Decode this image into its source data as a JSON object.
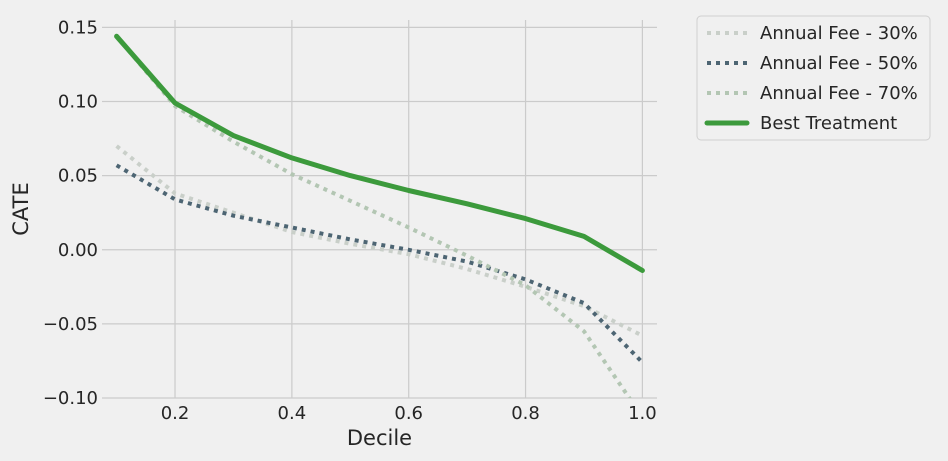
{
  "chart_data": {
    "type": "line",
    "xlabel": "Decile",
    "ylabel": "CATE",
    "xlim": [
      0.075,
      1.025
    ],
    "ylim": [
      -0.1,
      0.155
    ],
    "xticks": [
      0.2,
      0.4,
      0.6,
      0.8,
      1.0
    ],
    "xtick_labels": [
      "0.2",
      "0.4",
      "0.6",
      "0.8",
      "1.0"
    ],
    "yticks": [
      -0.1,
      -0.05,
      0.0,
      0.05,
      0.1,
      0.15
    ],
    "ytick_labels": [
      "−0.10",
      "−0.05",
      "0.00",
      "0.05",
      "0.10",
      "0.15"
    ],
    "grid": true,
    "legend_position": "outside-top-right",
    "x": [
      0.1,
      0.2,
      0.3,
      0.4,
      0.5,
      0.6,
      0.7,
      0.8,
      0.9,
      1.0
    ],
    "series": [
      {
        "name": "Annual Fee - 30%",
        "color": "#c9cfc9",
        "style": "dotted",
        "values": [
          0.07,
          0.038,
          0.025,
          0.012,
          0.004,
          -0.003,
          -0.013,
          -0.025,
          -0.038,
          -0.058
        ]
      },
      {
        "name": "Annual Fee - 50%",
        "color": "#4d6573",
        "style": "dotted",
        "values": [
          0.057,
          0.034,
          0.023,
          0.015,
          0.007,
          0.0,
          -0.008,
          -0.02,
          -0.036,
          -0.076
        ]
      },
      {
        "name": "Annual Fee - 70%",
        "color": "#b3c6b3",
        "style": "dotted",
        "values": [
          0.144,
          0.097,
          0.073,
          0.051,
          0.033,
          0.015,
          -0.004,
          -0.024,
          -0.055,
          -0.113
        ]
      },
      {
        "name": "Best Treatment",
        "color": "#3c9a3c",
        "style": "solid",
        "values": [
          0.144,
          0.099,
          0.077,
          0.062,
          0.05,
          0.04,
          0.031,
          0.021,
          0.009,
          -0.014
        ]
      }
    ]
  }
}
